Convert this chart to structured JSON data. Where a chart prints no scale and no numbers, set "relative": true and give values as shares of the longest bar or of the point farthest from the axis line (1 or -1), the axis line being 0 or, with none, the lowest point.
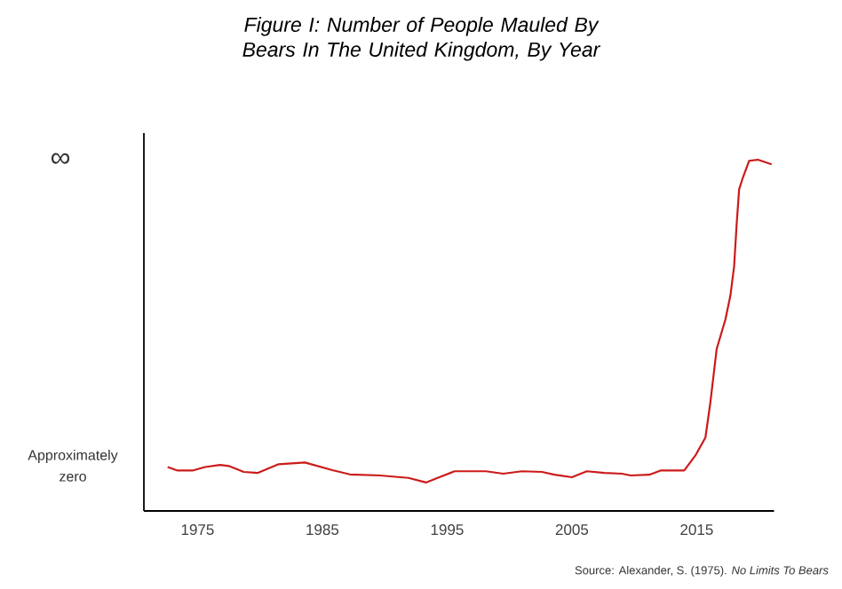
{
  "chart_data": {
    "type": "line",
    "relative": true,
    "title": "Figure I: Number of People Mauled By Bears In The United Kingdom, By Year",
    "annotations": [
      "∞",
      "Approximately zero",
      "Source: Alexander, S. (1975). *No Limits To Bears*"
    ],
    "xlim": [
      1970.7,
      2021.2
    ],
    "xticks": [
      1975,
      1985,
      1995,
      2005,
      2015
    ],
    "marker": "none",
    "line_style": "solid",
    "series": [
      {
        "color": "#cc1a1a",
        "x": [
          1972.6,
          1973.4,
          1974.6,
          1975.6,
          1976.8,
          1977.5,
          1978.7,
          1979.8,
          1981.5,
          1983.6,
          1985.8,
          1987.2,
          1989.6,
          1991.9,
          1993.3,
          1994.6,
          1995.6,
          1998.1,
          1999.5,
          2001.0,
          2002.6,
          2003.6,
          2005.0,
          2006.2,
          2007.6,
          2009.0,
          2009.7,
          2011.2,
          2012.1,
          2014.0,
          2014.9,
          2015.7,
          2016.1,
          2016.6,
          2017.3,
          2017.7,
          2018.0,
          2018.2,
          2018.4,
          2018.7,
          2019.2,
          2019.9,
          2021.0
        ],
        "values": [
          0.125,
          0.115,
          0.115,
          0.125,
          0.131,
          0.128,
          0.111,
          0.108,
          0.133,
          0.138,
          0.116,
          0.104,
          0.101,
          0.094,
          0.081,
          0.099,
          0.113,
          0.113,
          0.106,
          0.113,
          0.111,
          0.103,
          0.096,
          0.113,
          0.108,
          0.106,
          0.101,
          0.103,
          0.115,
          0.115,
          0.158,
          0.209,
          0.31,
          0.461,
          0.545,
          0.613,
          0.697,
          0.815,
          0.916,
          0.949,
          0.997,
          1.0,
          0.987
        ]
      }
    ]
  }
}
